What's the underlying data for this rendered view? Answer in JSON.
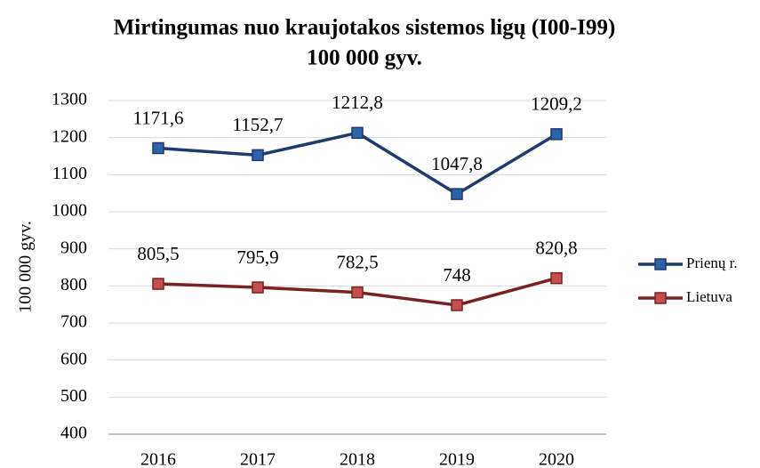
{
  "chart_data": {
    "type": "line",
    "title": [
      "Mirtingumas nuo kraujotakos  sistemos ligų (I00-I99)",
      "100 000 gyv."
    ],
    "y_label": "100 000 gyv.",
    "categories": [
      "2016",
      "2017",
      "2018",
      "2019",
      "2020"
    ],
    "series": [
      {
        "name": "Prienų r.",
        "color": "#1f3a6e",
        "marker_color": "#2e63a8",
        "values": [
          1171.6,
          1152.7,
          1212.8,
          1047.8,
          1209.2
        ],
        "value_labels": [
          "1171,6",
          "1152,7",
          "1212,8",
          "1047,8",
          "1209,2"
        ]
      },
      {
        "name": "Lietuva",
        "color": "#7a2222",
        "marker_color": "#c0504d",
        "values": [
          805.5,
          795.9,
          782.5,
          748,
          820.8
        ],
        "value_labels": [
          "805,5",
          "795,9",
          "782,5",
          "748",
          "820,8"
        ]
      }
    ],
    "ylim": [
      400,
      1300
    ],
    "yticks": [
      400,
      500,
      600,
      700,
      800,
      900,
      1000,
      1100,
      1200,
      1300
    ],
    "grid": true,
    "legend": "right"
  }
}
